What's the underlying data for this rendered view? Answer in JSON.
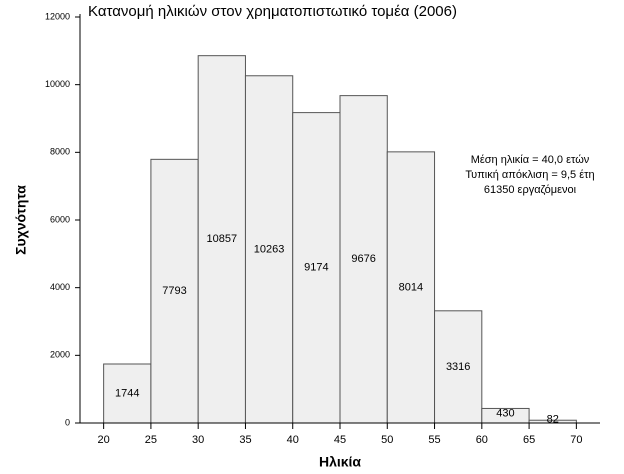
{
  "chart_data": {
    "type": "histogram",
    "title": "Κατανομή ηλικιών στον χρηματοπιστωτικό τομέα (2006)",
    "x_label": "Ηλικία",
    "y_label": "Συχνότητα",
    "bins": [
      20,
      25,
      30,
      35,
      40,
      45,
      50,
      55,
      60,
      65,
      70
    ],
    "values": [
      1744,
      7793,
      10857,
      10263,
      9174,
      9676,
      8014,
      3316,
      430,
      82
    ],
    "color": "#efefef",
    "xlim": [
      17.5,
      72.5
    ],
    "xticks": [
      20,
      25,
      30,
      35,
      40,
      45,
      50,
      55,
      60,
      65,
      70
    ],
    "ylim": [
      0,
      12000
    ],
    "yticks": [
      0,
      2000,
      4000,
      6000,
      8000,
      10000,
      12000
    ],
    "annotation": [
      "Μέση ηλικία = 40,0 ετών",
      "Τυπική απόκλιση = 9,5 έτη",
      "61350 εργαζόμενοι"
    ]
  }
}
